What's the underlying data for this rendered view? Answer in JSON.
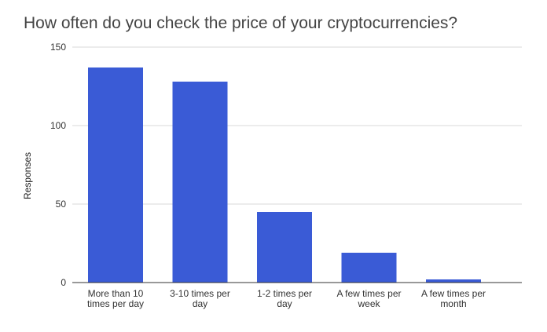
{
  "chart_data": {
    "type": "bar",
    "title": "How often do you check the price of your cryptocurrencies?",
    "xlabel": "",
    "ylabel": "Responses",
    "ylim": [
      0,
      150
    ],
    "yticks": [
      0,
      50,
      100,
      150
    ],
    "grid": true,
    "legend": "none",
    "bar_color": "#3a5bd6",
    "categories": [
      [
        "More than 10",
        "times per day"
      ],
      [
        "3-10 times per",
        "day"
      ],
      [
        "1-2 times per",
        "day"
      ],
      [
        "A few times per",
        "week"
      ],
      [
        "A few times per",
        "month"
      ]
    ],
    "values": [
      137,
      128,
      45,
      19,
      2
    ]
  }
}
